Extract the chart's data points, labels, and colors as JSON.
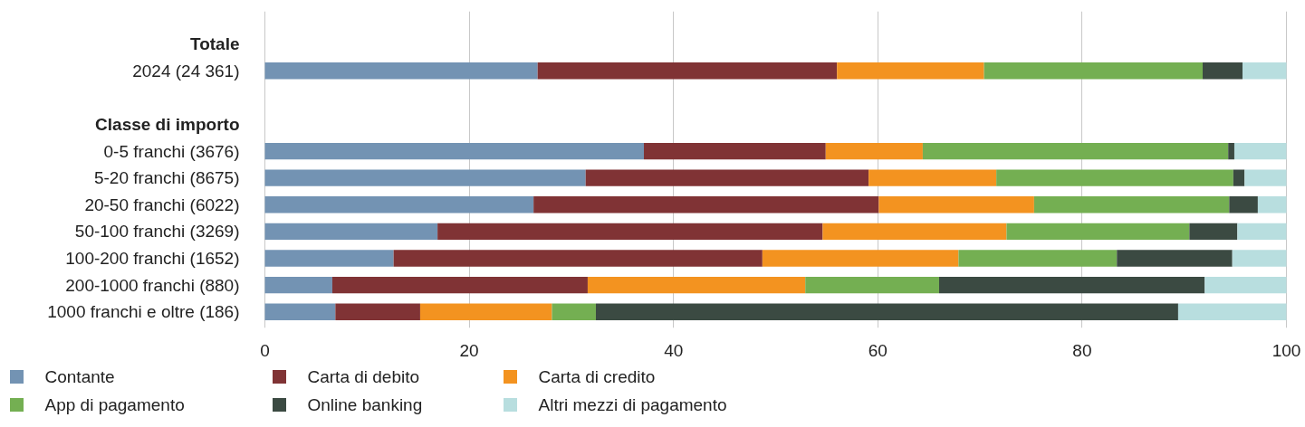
{
  "chart_data": {
    "type": "bar",
    "orientation": "horizontal",
    "stacked": true,
    "categories": [
      "Totale",
      "2024 (24 361)",
      null,
      "Classe di importo",
      "0-5 franchi (3676)",
      "5-20 franchi (8675)",
      "20-50 franchi (6022)",
      "50-100 franchi (3269)",
      "100-200 franchi (1652)",
      "200-1000 franchi (880)",
      "1000 franchi e oltre (186)"
    ],
    "series": [
      {
        "name": "Contante",
        "color": "#7393b3",
        "values": [
          null,
          26.7,
          null,
          null,
          37.1,
          31.4,
          26.3,
          16.9,
          12.6,
          6.6,
          6.9
        ]
      },
      {
        "name": "Carta di debito",
        "color": "#803335",
        "values": [
          null,
          29.3,
          null,
          null,
          17.8,
          27.7,
          33.8,
          37.7,
          36.1,
          25.0,
          8.3
        ]
      },
      {
        "name": "Carta di credito",
        "color": "#f39320",
        "values": [
          null,
          14.4,
          null,
          null,
          9.5,
          12.5,
          15.2,
          18.0,
          19.2,
          21.3,
          12.9
        ]
      },
      {
        "name": "App di pagamento",
        "color": "#74af52",
        "values": [
          null,
          21.4,
          null,
          null,
          29.9,
          23.2,
          19.1,
          17.9,
          15.5,
          13.1,
          4.3
        ]
      },
      {
        "name": "Online banking",
        "color": "#3b4a42",
        "values": [
          null,
          3.9,
          null,
          null,
          0.6,
          1.1,
          2.8,
          4.7,
          11.3,
          26.0,
          57.0
        ]
      },
      {
        "name": "Altri mezzi di pagamento",
        "color": "#b8dedf",
        "values": [
          null,
          4.3,
          null,
          null,
          5.1,
          4.1,
          2.8,
          4.8,
          5.3,
          8.0,
          10.6
        ]
      }
    ],
    "xlim": [
      0,
      100
    ],
    "xticks": [
      0,
      20,
      40,
      60,
      80,
      100
    ],
    "grid": "x",
    "legend": "bottom"
  }
}
